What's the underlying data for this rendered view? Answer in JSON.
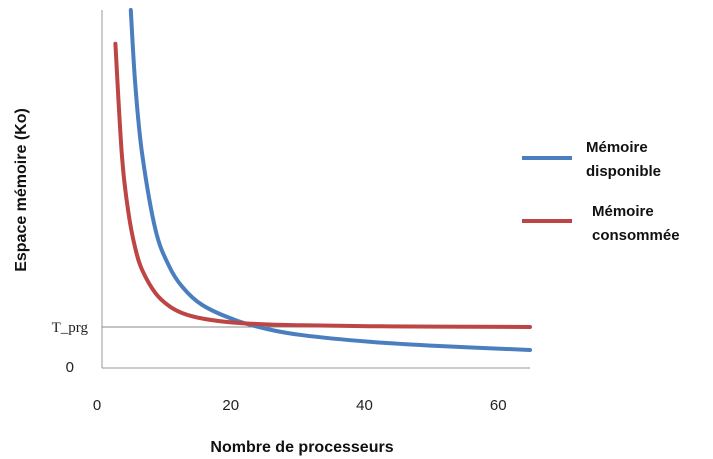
{
  "chart_data": {
    "type": "line",
    "xlabel": "Nombre de processeurs",
    "ylabel": "Espace mémoire (Ko)",
    "xlim": [
      0,
      64
    ],
    "x_ticks": [
      "0",
      "20",
      "40",
      "60"
    ],
    "y_ticks": [
      "0"
    ],
    "reference_line": {
      "label": "T_prg",
      "value": 1
    },
    "ylim": [
      0,
      8.5
    ],
    "legend_position": "right",
    "series": [
      {
        "name": "Mémoire disponible",
        "color": "#4a7ebf",
        "x": [
          4.3,
          5,
          6,
          8,
          10,
          12,
          15,
          20,
          25,
          30,
          40,
          50,
          64
        ],
        "y": [
          8.5,
          6.7,
          5.1,
          3.3,
          2.45,
          1.95,
          1.52,
          1.16,
          0.94,
          0.8,
          0.64,
          0.54,
          0.44
        ]
      },
      {
        "name": "Mémoire consommée",
        "color": "#bd4545",
        "x": [
          2,
          3,
          4,
          5,
          6,
          8,
          10,
          12,
          15,
          20,
          25,
          30,
          40,
          50,
          64
        ],
        "y": [
          7.7,
          5.0,
          3.65,
          2.85,
          2.35,
          1.8,
          1.5,
          1.33,
          1.2,
          1.1,
          1.06,
          1.04,
          1.02,
          1.01,
          1.0
        ]
      }
    ]
  }
}
